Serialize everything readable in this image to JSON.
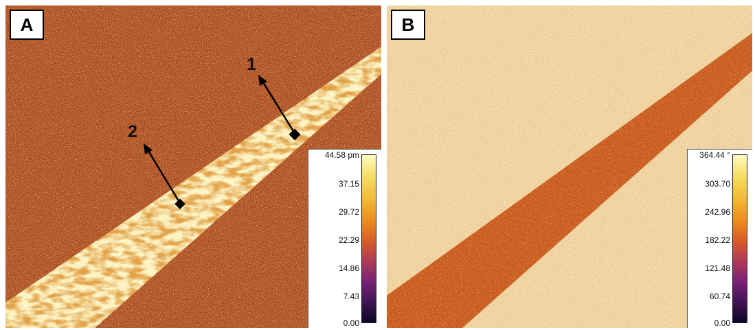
{
  "panels": [
    {
      "label": "A",
      "markers": [
        "1",
        "2"
      ],
      "scale": {
        "ticks": [
          "44.58 pm",
          "37.15",
          "29.72",
          "22.29",
          "14.86",
          "7.43",
          "0.00"
        ]
      }
    },
    {
      "label": "B",
      "scale": {
        "ticks": [
          "364.44 °",
          "303.70",
          "242.96",
          "182.22",
          "121.48",
          "60.74",
          "0.00"
        ]
      }
    }
  ],
  "colors": {
    "panel_a_background": "#a8471c",
    "panel_a_stripe": "#f7e38d",
    "panel_b_background": "#efd7a0",
    "panel_b_stripe": "#c85a1e",
    "marker": "#000000"
  }
}
